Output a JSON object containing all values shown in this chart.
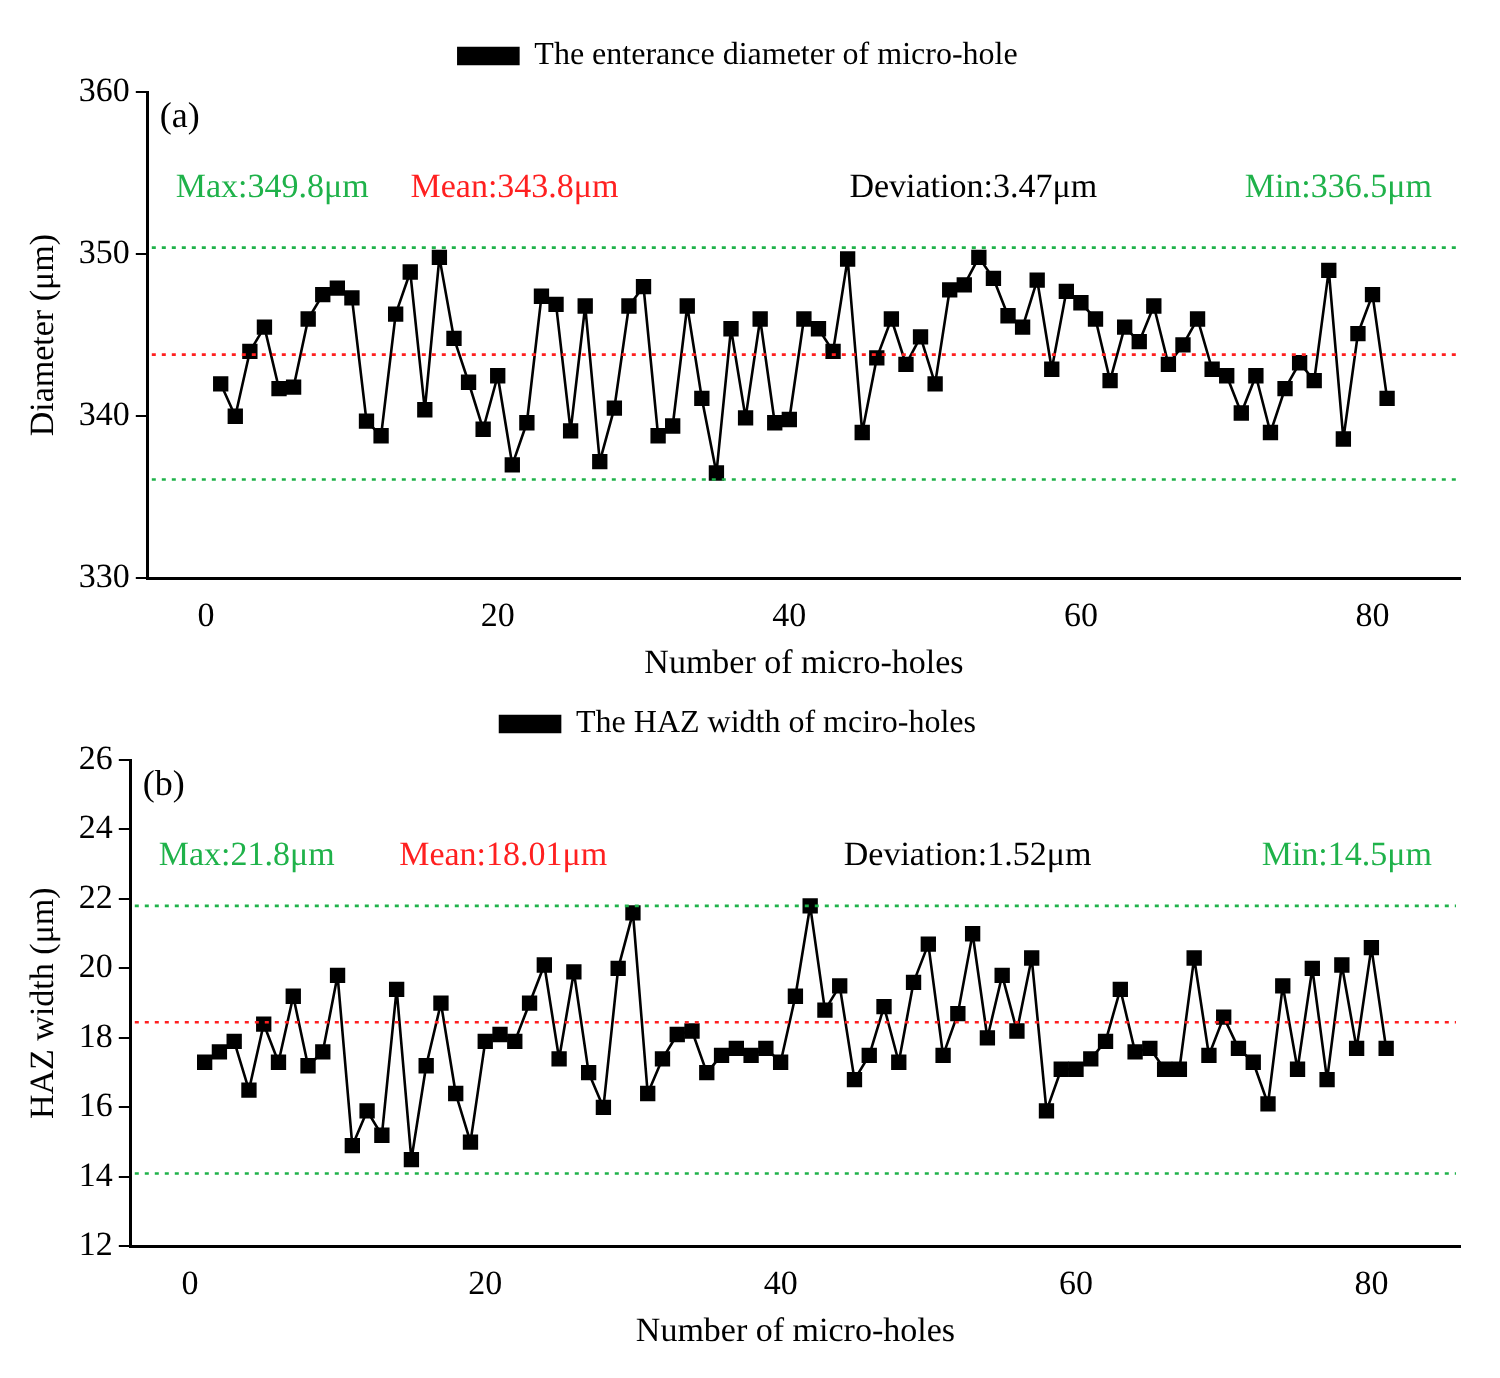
{
  "chart_data": [
    {
      "type": "line",
      "title": "(a)",
      "xlabel": "Number of micro-holes",
      "ylabel": "Diameter (μm)",
      "x": [
        1,
        2,
        3,
        4,
        5,
        6,
        7,
        8,
        9,
        10,
        11,
        12,
        13,
        14,
        15,
        16,
        17,
        18,
        19,
        20,
        21,
        22,
        23,
        24,
        25,
        26,
        27,
        28,
        29,
        30,
        31,
        32,
        33,
        34,
        35,
        36,
        37,
        38,
        39,
        40,
        41,
        42,
        43,
        44,
        45,
        46,
        47,
        48,
        49,
        50,
        51,
        52,
        53,
        54,
        55,
        56,
        57,
        58,
        59,
        60,
        61,
        62,
        63,
        64,
        65,
        66,
        67,
        68,
        69,
        70,
        71,
        72,
        73,
        74,
        75,
        76,
        77,
        78,
        79,
        80,
        81
      ],
      "series": [
        {
          "name": "The enterance diameter of micro-hole",
          "color": "#000000",
          "values": [
            342,
            340,
            344,
            345.5,
            341.7,
            341.8,
            346,
            347.5,
            347.9,
            347.3,
            339.7,
            338.8,
            346.3,
            348.9,
            340.4,
            349.8,
            344.8,
            342.1,
            339.2,
            342.5,
            337,
            339.6,
            347.4,
            346.9,
            339.1,
            346.8,
            337.2,
            340.5,
            346.8,
            348,
            338.8,
            339.4,
            346.8,
            341.1,
            336.5,
            345.4,
            339.9,
            346,
            339.6,
            339.8,
            346,
            345.4,
            344,
            349.7,
            339,
            343.6,
            346,
            343.2,
            344.9,
            342,
            347.8,
            348.1,
            349.8,
            348.5,
            346.2,
            345.5,
            348.4,
            342.9,
            347.7,
            347,
            346,
            342.2,
            345.5,
            344.6,
            346.8,
            343.2,
            344.4,
            346,
            342.9,
            342.5,
            340.2,
            342.5,
            339,
            341.7,
            343.3,
            342.2,
            349,
            338.6,
            345.1,
            347.5,
            341.1
          ]
        }
      ],
      "annotations": [
        "Max:349.8μm",
        "Mean:343.8μm",
        "Deviation:3.47μm",
        "Min:336.5μm"
      ],
      "ref_lines": [
        {
          "axis": "y",
          "value": 350.4,
          "color": "#1fb24a",
          "line_style": "dotted"
        },
        {
          "axis": "y",
          "value": 343.8,
          "color": "#ff2020",
          "line_style": "dotted"
        },
        {
          "axis": "y",
          "value": 336.1,
          "color": "#1fb24a",
          "line_style": "dotted"
        }
      ],
      "xlim": [
        -4,
        86
      ],
      "xticks": [
        0,
        20,
        40,
        60,
        80
      ],
      "ylim": [
        330,
        360
      ],
      "yticks": [
        330,
        340,
        350,
        360
      ],
      "grid": false,
      "legend": "top",
      "marker": "square",
      "line_style": "solid"
    },
    {
      "type": "line",
      "title": "(b)",
      "xlabel": "Number of micro-holes",
      "ylabel": "HAZ width (μm)",
      "x": [
        1,
        2,
        3,
        4,
        5,
        6,
        7,
        8,
        9,
        10,
        11,
        12,
        13,
        14,
        15,
        16,
        17,
        18,
        19,
        20,
        21,
        22,
        23,
        24,
        25,
        26,
        27,
        28,
        29,
        30,
        31,
        32,
        33,
        34,
        35,
        36,
        37,
        38,
        39,
        40,
        41,
        42,
        43,
        44,
        45,
        46,
        47,
        48,
        49,
        50,
        51,
        52,
        53,
        54,
        55,
        56,
        57,
        58,
        59,
        60,
        61,
        62,
        63,
        64,
        65,
        66,
        67,
        68,
        69,
        70,
        71,
        72,
        73,
        74,
        75,
        76,
        77,
        78,
        79,
        80,
        81
      ],
      "series": [
        {
          "name": "The HAZ width of mciro-holes",
          "color": "#000000",
          "values": [
            17.3,
            17.6,
            17.9,
            16.5,
            18.4,
            17.3,
            19.2,
            17.2,
            17.6,
            19.8,
            14.9,
            15.9,
            15.2,
            19.4,
            14.5,
            17.2,
            19.0,
            16.4,
            15.0,
            17.9,
            18.1,
            17.9,
            19.0,
            20.1,
            17.4,
            19.9,
            17.0,
            16.0,
            20.0,
            21.6,
            16.4,
            17.4,
            18.1,
            18.2,
            17.0,
            17.5,
            17.7,
            17.5,
            17.7,
            17.3,
            19.2,
            21.8,
            18.8,
            19.5,
            16.8,
            17.5,
            18.9,
            17.3,
            19.6,
            20.7,
            17.5,
            18.7,
            21.0,
            18.0,
            19.8,
            18.2,
            20.3,
            15.9,
            17.1,
            17.1,
            17.4,
            17.9,
            19.4,
            17.6,
            17.7,
            17.1,
            17.1,
            20.3,
            17.5,
            18.6,
            17.7,
            17.3,
            16.1,
            19.5,
            17.1,
            20.0,
            16.8,
            20.1,
            17.7,
            20.6,
            17.7
          ]
        }
      ],
      "annotations": [
        "Max:21.8μm",
        "Mean:18.01μm",
        "Deviation:1.52μm",
        "Min:14.5μm"
      ],
      "ref_lines": [
        {
          "axis": "y",
          "value": 21.8,
          "color": "#1fb24a",
          "line_style": "dotted"
        },
        {
          "axis": "y",
          "value": 18.45,
          "color": "#ff2020",
          "line_style": "dotted"
        },
        {
          "axis": "y",
          "value": 14.1,
          "color": "#1fb24a",
          "line_style": "dotted"
        }
      ],
      "xlim": [
        -4,
        86
      ],
      "xticks": [
        0,
        20,
        40,
        60,
        80
      ],
      "ylim": [
        12,
        26
      ],
      "yticks": [
        12,
        14,
        16,
        18,
        20,
        22,
        24,
        26
      ],
      "grid": false,
      "legend": "top",
      "marker": "square",
      "line_style": "solid"
    }
  ]
}
